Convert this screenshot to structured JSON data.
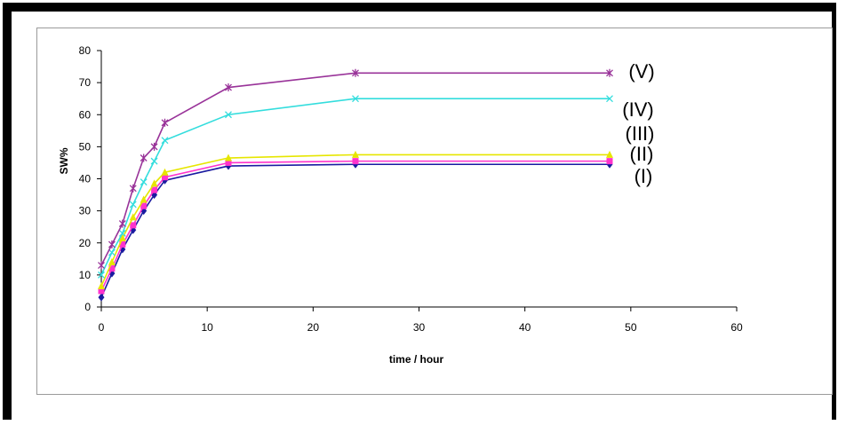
{
  "chart_data": {
    "type": "line",
    "xlabel": "time / hour",
    "ylabel": "SW%",
    "xlim": [
      0,
      60
    ],
    "ylim": [
      0,
      80
    ],
    "xticks": [
      0,
      10,
      20,
      30,
      40,
      50,
      60
    ],
    "yticks": [
      0,
      10,
      20,
      30,
      40,
      50,
      60,
      70,
      80
    ],
    "grid": false,
    "x": [
      0,
      1,
      2,
      3,
      4,
      5,
      6,
      12,
      24,
      48
    ],
    "series": [
      {
        "name": "(I)",
        "color": "#1a1aa0",
        "marker": "diamond",
        "values": [
          3,
          10.5,
          18,
          24,
          30,
          35,
          39.5,
          44,
          44.5,
          44.5
        ]
      },
      {
        "name": "(II)",
        "color": "#ff33cc",
        "marker": "square",
        "values": [
          5,
          12,
          19.5,
          25.5,
          31.5,
          36.5,
          40.5,
          45,
          45.5,
          45.5
        ]
      },
      {
        "name": "(III)",
        "color": "#e6e600",
        "marker": "triangle",
        "values": [
          6.5,
          14,
          21.5,
          28,
          33.5,
          38.5,
          42,
          46.5,
          47.5,
          47.5
        ]
      },
      {
        "name": "(IV)",
        "color": "#33dddd",
        "marker": "x",
        "values": [
          10,
          17,
          23,
          32,
          39,
          45.5,
          52,
          60,
          65,
          65
        ]
      },
      {
        "name": "(V)",
        "color": "#993399",
        "marker": "asterisk",
        "values": [
          13,
          19.5,
          26,
          37,
          46.5,
          50,
          57.5,
          68.5,
          73,
          73
        ]
      }
    ],
    "annotations": [
      "(V)",
      "(IV)",
      "(III)",
      "(II)",
      "(I)"
    ]
  }
}
